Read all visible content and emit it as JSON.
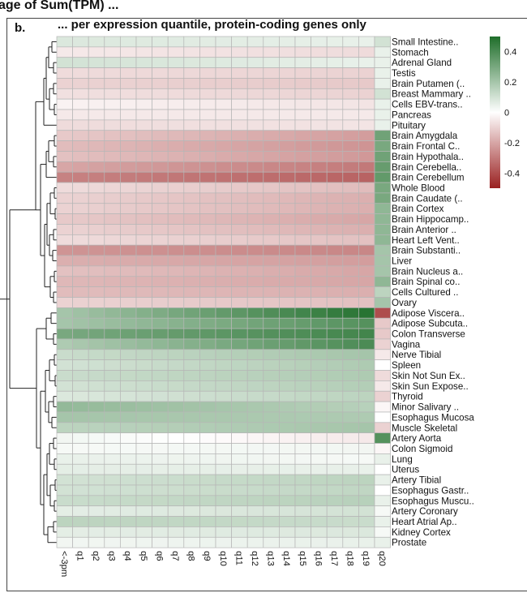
{
  "header": {
    "title": "age of Sum(TPM) ...",
    "panel_label": "b.",
    "subtitle": "... per expression quantile, protein-coding genes only"
  },
  "colors": {
    "low": "#9a2020",
    "mid": "#ffffff",
    "high": "#1f6e2a",
    "grid": "#b6b6b6",
    "tree": "#222222"
  },
  "chart_data": {
    "type": "heatmap",
    "title": "... per expression quantile, protein-coding genes only",
    "columns": [
      "<-3pm",
      "q1",
      "q2",
      "q3",
      "q4",
      "q5",
      "q6",
      "q7",
      "q8",
      "q9",
      "q10",
      "q11",
      "q12",
      "q13",
      "q14",
      "q15",
      "q16",
      "q17",
      "q18",
      "q19",
      "q20"
    ],
    "rows": [
      "Small Intestine..",
      "Stomach",
      "Adrenal Gland",
      "Testis",
      "Brain Putamen (..",
      "Breast Mammary ..",
      "Cells EBV-trans..",
      "Pancreas",
      "Pituitary",
      "Brain Amygdala",
      "Brain Frontal C..",
      "Brain Hypothala..",
      "Brain Cerebella..",
      "Brain Cerebellum",
      "Whole Blood",
      "Brain Caudate (..",
      "Brain Cortex",
      "Brain Hippocamp..",
      "Brain Anterior ..",
      "Heart Left Vent..",
      "Brain Substanti..",
      "Liver",
      "Brain Nucleus a..",
      "Brain Spinal co..",
      "Cells Cultured ..",
      "Ovary",
      "Adipose Viscera..",
      "Adipose Subcuta..",
      "Colon Transverse",
      "Vagina",
      "Nerve Tibial",
      "Spleen",
      "Skin Not Sun Ex..",
      "Skin Sun Expose..",
      "Thyroid",
      "Minor Salivary ..",
      "Esophagus Mucosa",
      "Muscle Skeletal",
      "Artery Aorta",
      "Colon Sigmoid",
      "Lung",
      "Uterus",
      "Artery Tibial",
      "Esophagus Gastr..",
      "Esophagus Muscu..",
      "Artery Coronary",
      "Heart Atrial Ap..",
      "Kidney Cortex",
      "Prostate"
    ],
    "row_profiles": [
      [
        0.08,
        0.05
      ],
      [
        -0.05,
        -0.08
      ],
      [
        0.1,
        0.05
      ],
      [
        -0.08,
        -0.1
      ],
      [
        -0.1,
        -0.12
      ],
      [
        -0.07,
        -0.1
      ],
      [
        -0.03,
        -0.06
      ],
      [
        -0.05,
        -0.05
      ],
      [
        -0.08,
        -0.06
      ],
      [
        -0.12,
        -0.22
      ],
      [
        -0.15,
        -0.24
      ],
      [
        -0.14,
        -0.23
      ],
      [
        -0.2,
        -0.3
      ],
      [
        -0.28,
        -0.35
      ],
      [
        -0.08,
        -0.15
      ],
      [
        -0.1,
        -0.18
      ],
      [
        -0.1,
        -0.18
      ],
      [
        -0.12,
        -0.2
      ],
      [
        -0.1,
        -0.18
      ],
      [
        -0.08,
        -0.14
      ],
      [
        -0.24,
        -0.27
      ],
      [
        -0.18,
        -0.22
      ],
      [
        -0.14,
        -0.2
      ],
      [
        -0.16,
        -0.2
      ],
      [
        -0.15,
        -0.18
      ],
      [
        -0.1,
        -0.14
      ],
      [
        0.2,
        0.48
      ],
      [
        0.2,
        0.38
      ],
      [
        0.3,
        0.42
      ],
      [
        0.18,
        0.4
      ],
      [
        0.12,
        0.2
      ],
      [
        0.1,
        0.18
      ],
      [
        0.12,
        0.18
      ],
      [
        0.1,
        0.17
      ],
      [
        0.08,
        0.15
      ],
      [
        0.24,
        0.16
      ],
      [
        0.2,
        0.18
      ],
      [
        0.15,
        0.2
      ],
      [
        0.03,
        -0.05
      ],
      [
        0.02,
        0.03
      ],
      [
        0.05,
        0.02
      ],
      [
        0.06,
        0.05
      ],
      [
        0.1,
        0.15
      ],
      [
        0.1,
        0.14
      ],
      [
        0.12,
        0.16
      ],
      [
        0.06,
        0.1
      ],
      [
        0.15,
        0.12
      ],
      [
        0.06,
        0.08
      ],
      [
        0.03,
        0.05
      ]
    ],
    "last_column": [
      0.1,
      0.05,
      0.05,
      0.05,
      0.05,
      0.1,
      0.05,
      0.05,
      0.05,
      0.32,
      0.3,
      0.32,
      0.34,
      0.35,
      0.3,
      0.3,
      0.25,
      0.25,
      0.25,
      0.25,
      0.2,
      0.2,
      0.2,
      0.25,
      0.15,
      0.2,
      -0.4,
      -0.12,
      -0.12,
      -0.1,
      -0.05,
      0.0,
      -0.08,
      -0.05,
      -0.1,
      -0.02,
      0.0,
      -0.1,
      0.38,
      -0.02,
      0.05,
      0.0,
      0.05,
      0.0,
      0.05,
      0.02,
      0.05,
      0.02,
      0.05
    ],
    "legend": {
      "ticks": [
        0.4,
        0.2,
        0,
        -0.2,
        -0.4
      ],
      "labels": [
        "0.4",
        "0.2",
        "0",
        "-0.2",
        "-0.4"
      ],
      "range": [
        -0.5,
        0.5
      ]
    }
  }
}
